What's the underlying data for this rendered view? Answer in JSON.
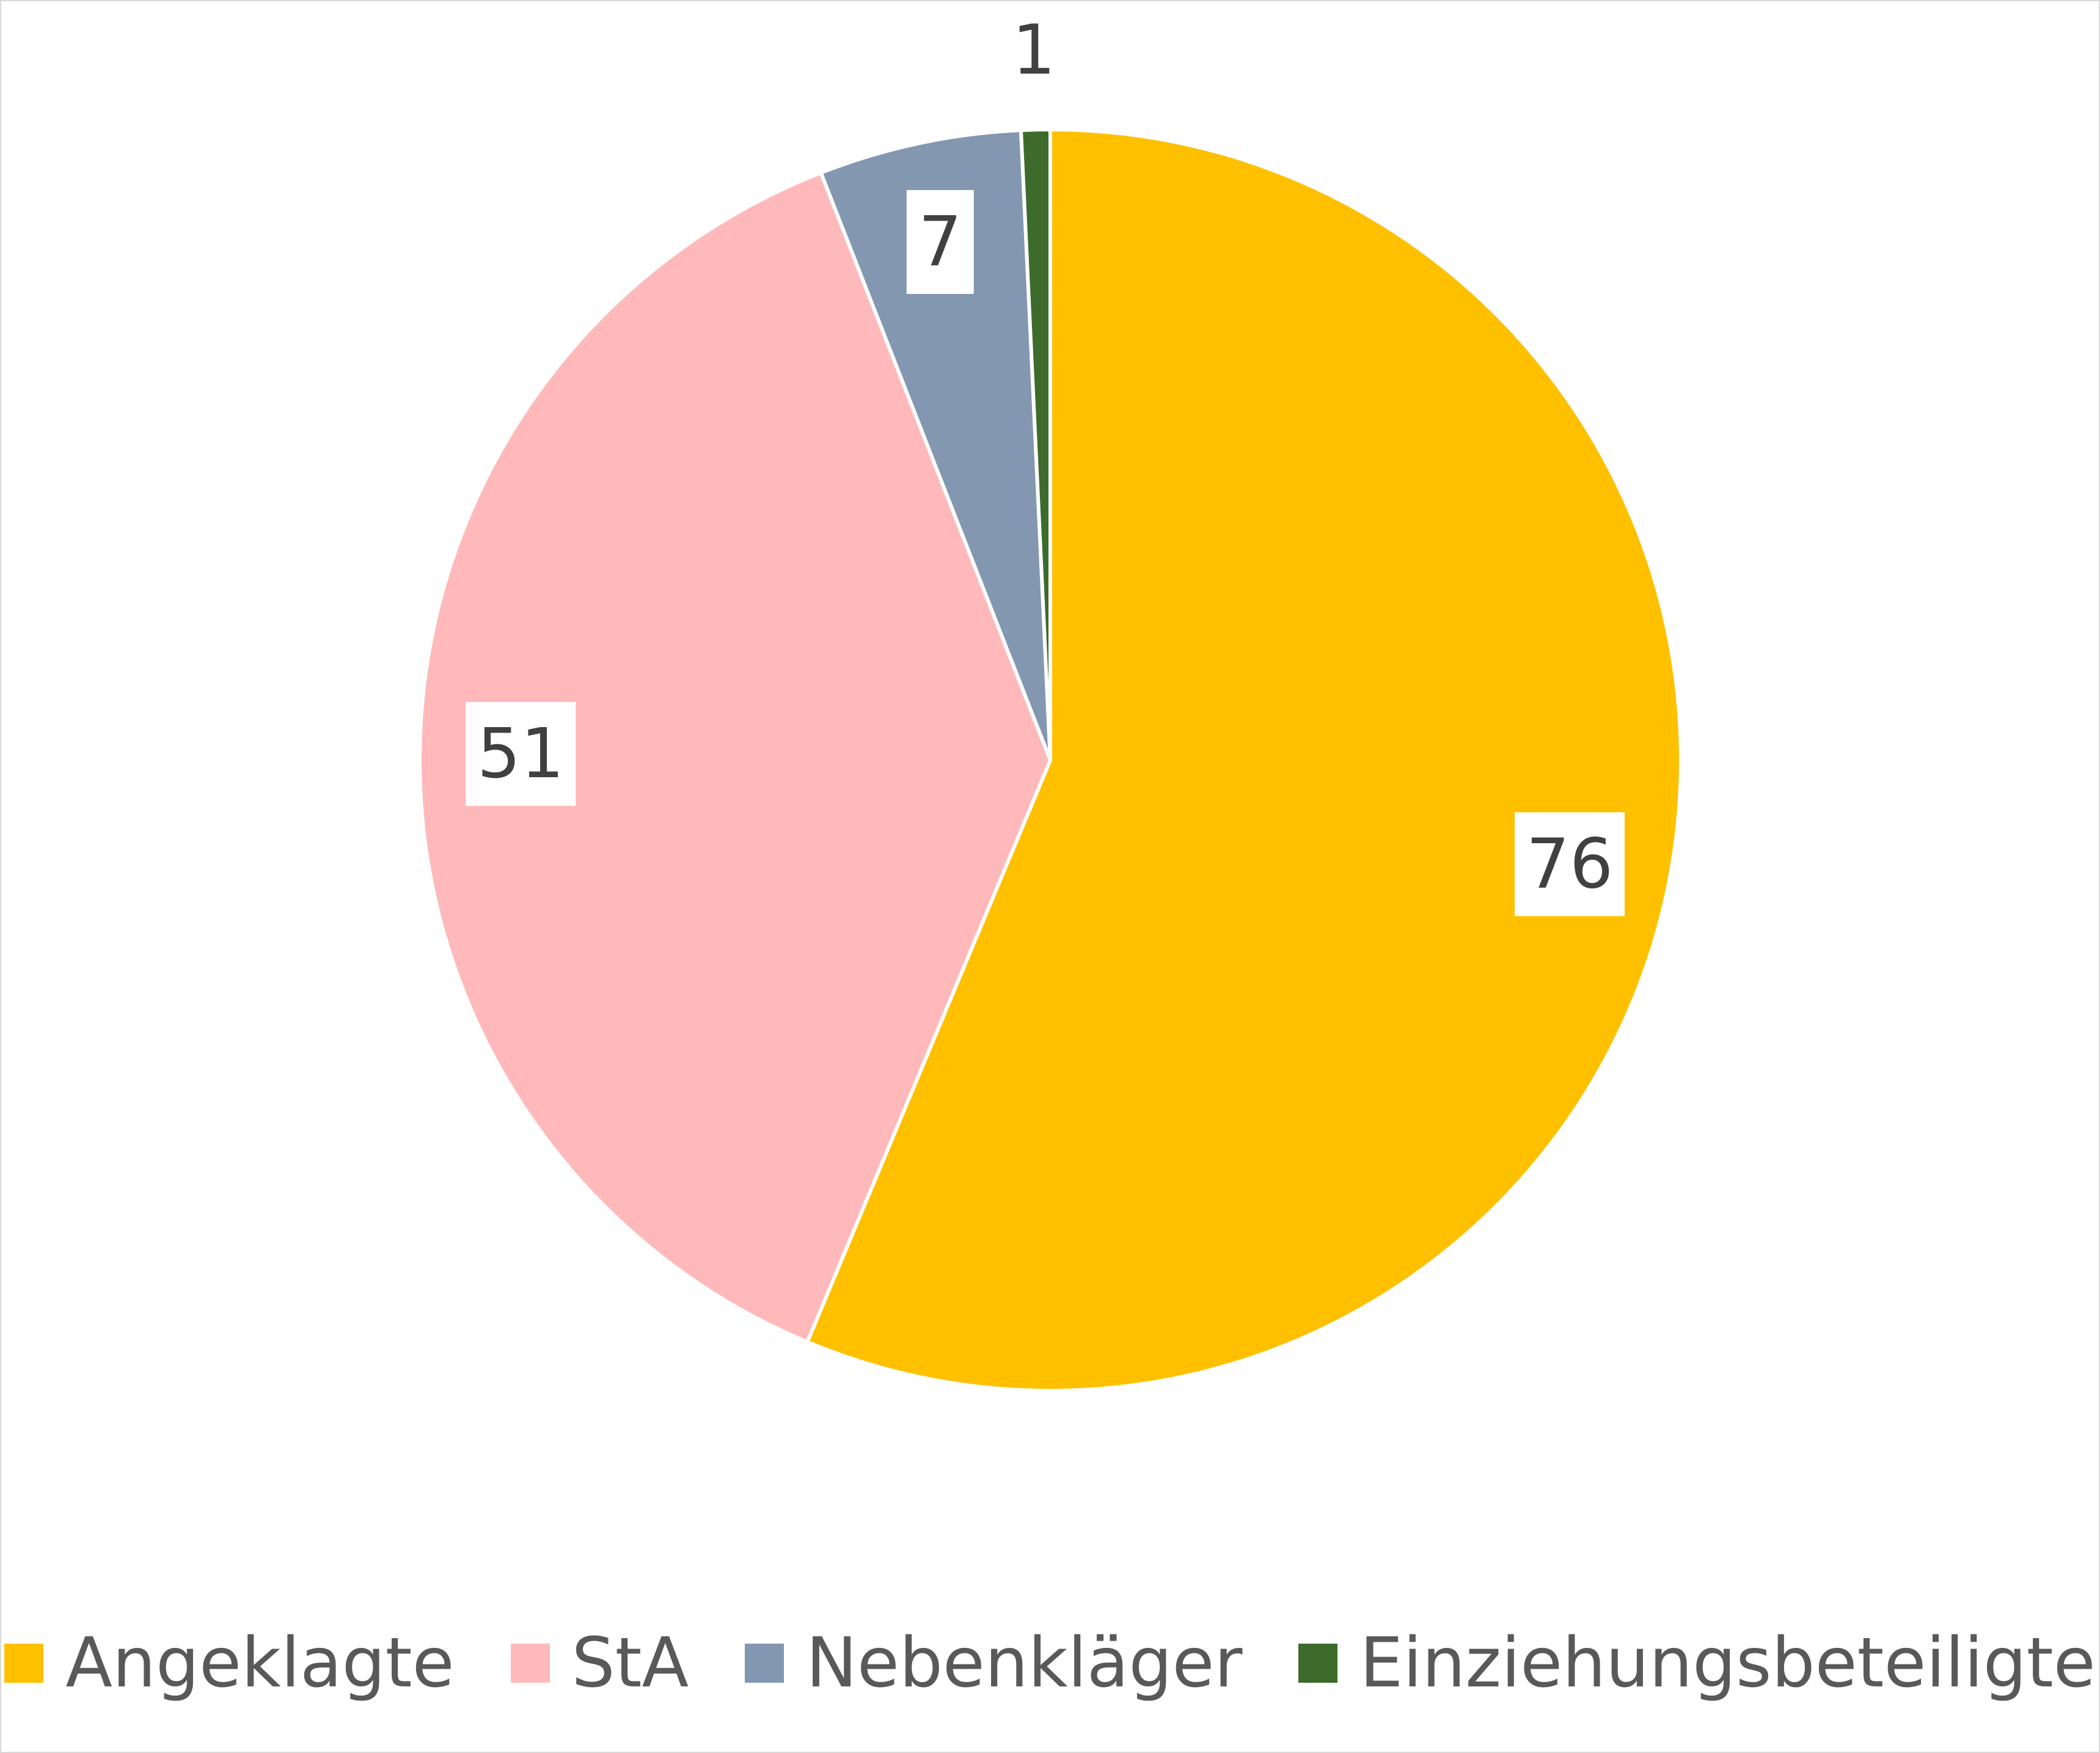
{
  "chart_data": {
    "type": "pie",
    "title": "",
    "categories": [
      "Angeklagte",
      "StA",
      "Nebenkläger",
      "Einziehungsbeteiligte"
    ],
    "values": [
      76,
      51,
      7,
      1
    ],
    "data_labels": [
      "76",
      "51",
      "7",
      "1"
    ],
    "colors": [
      "#FFC000",
      "#FFB9BA",
      "#8497B0",
      "#3D6B2B"
    ],
    "start_angle": "12 o'clock",
    "direction": "clockwise",
    "legend_position": "bottom",
    "data_labels_shown": true
  },
  "legend": {
    "items": [
      {
        "label": "Angeklagte",
        "color": "#FFC000"
      },
      {
        "label": "StA",
        "color": "#FFB9BA"
      },
      {
        "label": "Nebenkläger",
        "color": "#8497B0"
      },
      {
        "label": "Einziehungsbeteiligte",
        "color": "#3D6B2B"
      }
    ]
  }
}
